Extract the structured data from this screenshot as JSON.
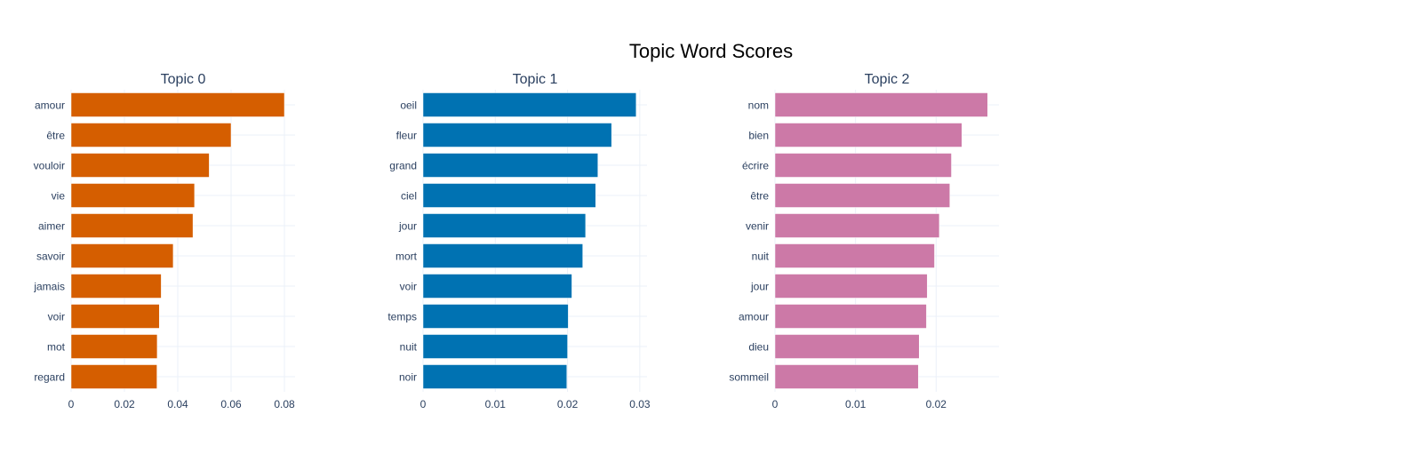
{
  "chart_data": {
    "type": "bar",
    "orientation": "horizontal",
    "title": "Topic Word Scores",
    "grid": true,
    "legend": "none",
    "panels": [
      {
        "title": "Topic 0",
        "color": "#D55E00",
        "categories": [
          "amour",
          "être",
          "vouloir",
          "vie",
          "aimer",
          "savoir",
          "jamais",
          "voir",
          "mot",
          "regard"
        ],
        "values": [
          0.08,
          0.06,
          0.0518,
          0.0463,
          0.0457,
          0.0383,
          0.0338,
          0.0331,
          0.0323,
          0.0322
        ],
        "xlim": [
          0,
          0.084
        ],
        "xticks": [
          0,
          0.02,
          0.04,
          0.06,
          0.08
        ],
        "xtick_labels": [
          "0",
          "0.02",
          "0.04",
          "0.06",
          "0.08"
        ]
      },
      {
        "title": "Topic 1",
        "color": "#0072B2",
        "categories": [
          "oeil",
          "fleur",
          "grand",
          "ciel",
          "jour",
          "mort",
          "voir",
          "temps",
          "nuit",
          "noir"
        ],
        "values": [
          0.0295,
          0.0261,
          0.0242,
          0.0239,
          0.0225,
          0.0221,
          0.0206,
          0.0201,
          0.02,
          0.0199
        ],
        "xlim": [
          0,
          0.031
        ],
        "xticks": [
          0,
          0.01,
          0.02,
          0.03
        ],
        "xtick_labels": [
          "0",
          "0.01",
          "0.02",
          "0.03"
        ]
      },
      {
        "title": "Topic 2",
        "color": "#CC79A7",
        "categories": [
          "nom",
          "bien",
          "écrire",
          "être",
          "venir",
          "nuit",
          "jour",
          "amour",
          "dieu",
          "sommeil"
        ],
        "values": [
          0.0264,
          0.0232,
          0.0219,
          0.0217,
          0.0204,
          0.0198,
          0.0189,
          0.0188,
          0.0179,
          0.0178
        ],
        "xlim": [
          0,
          0.0278
        ],
        "xticks": [
          0,
          0.01,
          0.02
        ],
        "xtick_labels": [
          "0",
          "0.01",
          "0.02"
        ]
      }
    ]
  }
}
